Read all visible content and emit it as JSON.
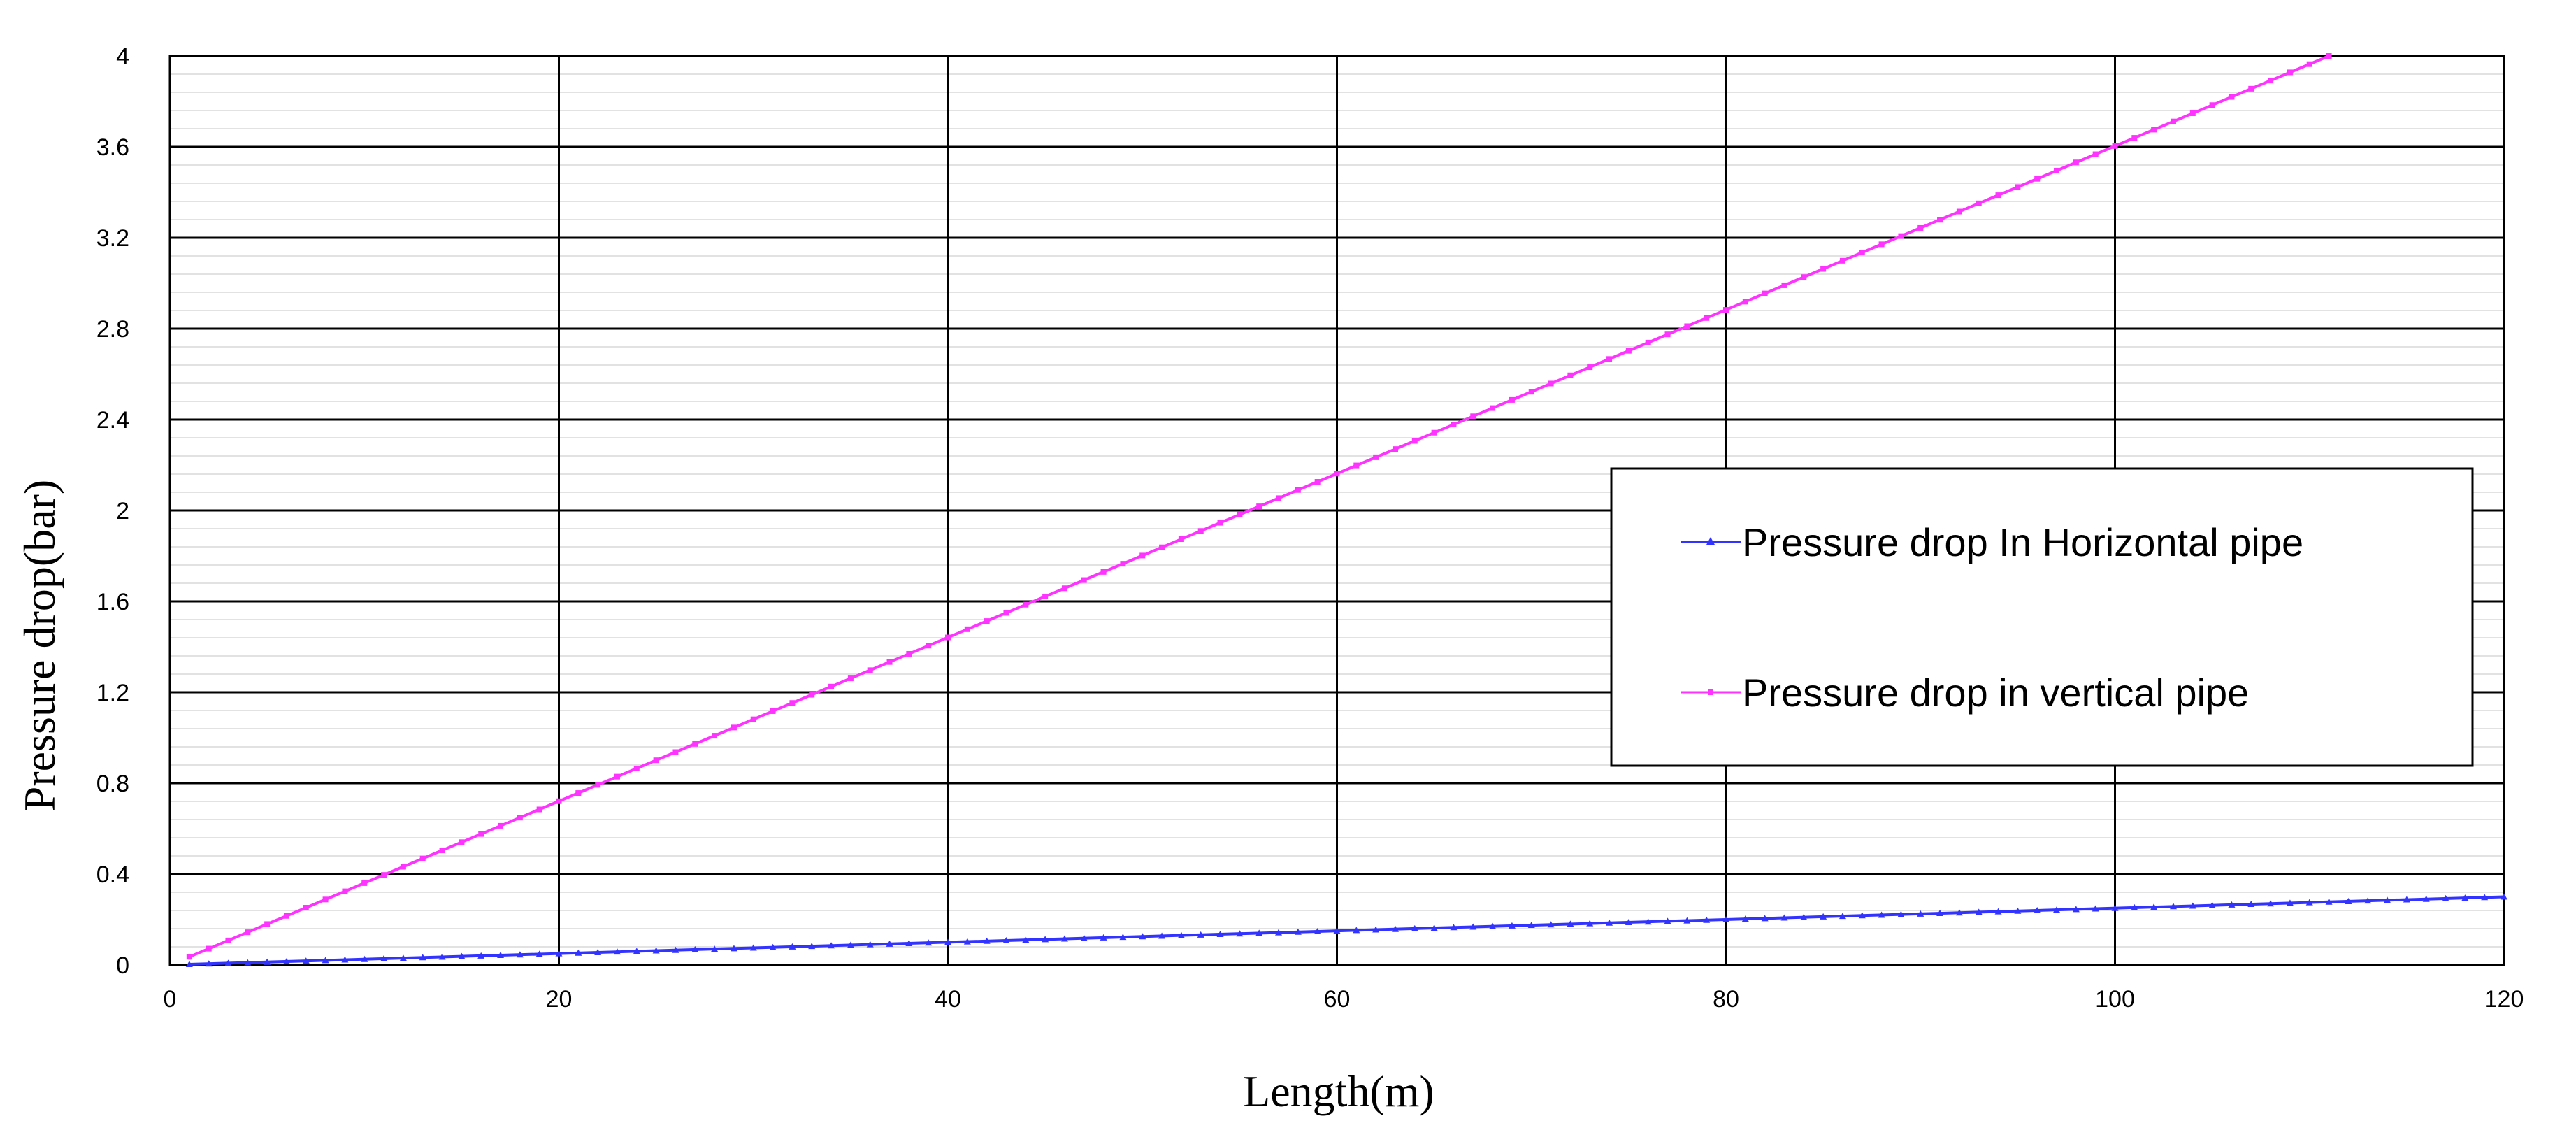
{
  "chart_data": {
    "type": "line",
    "title": "",
    "xlabel": "Length(m)",
    "ylabel": "Pressure drop(bar)",
    "xlim": [
      0,
      120
    ],
    "ylim": [
      0,
      4
    ],
    "xticks": [
      0,
      20,
      40,
      60,
      80,
      100,
      120
    ],
    "yticks": [
      0,
      0.4,
      0.8,
      1.2,
      1.6,
      2,
      2.4,
      2.8,
      3.2,
      3.6,
      4
    ],
    "xtick_labels": [
      "0",
      "20",
      "40",
      "60",
      "80",
      "100",
      "120"
    ],
    "ytick_labels": [
      "0",
      "0.4",
      "0.8",
      "1.2",
      "1.6",
      "2",
      "2.4",
      "2.8",
      "3.2",
      "3.6",
      "4"
    ],
    "grid": true,
    "minor_grid_step": 0.08,
    "legend_position": "center-right",
    "series": [
      {
        "name": "Pressure drop In Horizontal pipe",
        "color": "#3333ff",
        "marker": "triangle",
        "x": [
          1,
          120
        ],
        "y": [
          0.003,
          0.3
        ],
        "point_step": 1
      },
      {
        "name": "Pressure drop in vertical pipe",
        "color": "#ff33ff",
        "marker": "square",
        "x": [
          1,
          111
        ],
        "y": [
          0.036,
          4.0
        ],
        "point_step": 1
      }
    ]
  }
}
